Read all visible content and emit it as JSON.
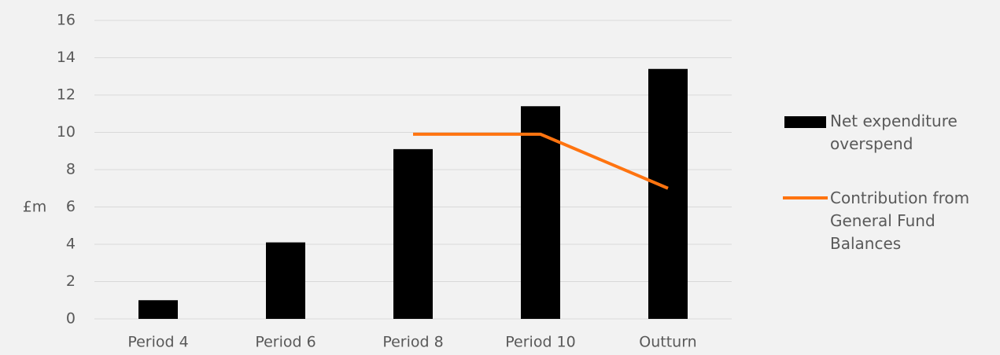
{
  "chart_data": {
    "type": "bar",
    "y_label": "£m",
    "categories": [
      "Period 4",
      "Period 6",
      "Period 8",
      "Period 10",
      "Outturn"
    ],
    "series": [
      {
        "name": "Net expenditure overspend",
        "type": "bar",
        "color": "#000000",
        "values": [
          1.0,
          4.1,
          9.1,
          11.4,
          13.4
        ]
      },
      {
        "name": "Contribution from General Fund Balances",
        "type": "line",
        "color": "#ff7410",
        "values": [
          null,
          null,
          9.9,
          9.9,
          7.0
        ]
      }
    ],
    "ylim": [
      0,
      16
    ],
    "yticks": [
      0,
      2,
      4,
      6,
      8,
      10,
      12,
      14,
      16
    ],
    "grid": true,
    "legend": "right"
  }
}
